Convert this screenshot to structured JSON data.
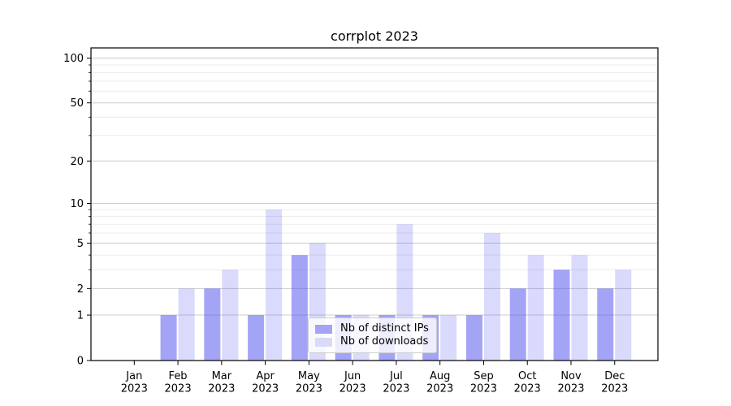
{
  "chart_data": {
    "type": "bar",
    "title": "corrplot 2023",
    "xlabel": "",
    "ylabel": "",
    "scale": "log1p",
    "grid": true,
    "legend_position": "lower center",
    "ylim": [
      0,
      117
    ],
    "y_major_ticks": [
      0,
      1,
      2,
      5,
      10,
      20,
      50,
      100
    ],
    "y_minor_gridlines": [
      3,
      4,
      6,
      7,
      8,
      9,
      30,
      40,
      60,
      70,
      80,
      90
    ],
    "categories": [
      "Jan 2023",
      "Feb 2023",
      "Mar 2023",
      "Apr 2023",
      "May 2023",
      "Jun 2023",
      "Jul 2023",
      "Aug 2023",
      "Sep 2023",
      "Oct 2023",
      "Nov 2023",
      "Dec 2023"
    ],
    "series": [
      {
        "name": "Nb of distinct IPs",
        "color": "rgba(80,80,240,0.52)",
        "swatch_color": "#a4a4f4",
        "values": [
          0,
          1,
          2,
          1,
          4,
          1,
          1,
          1,
          1,
          2,
          3,
          2
        ]
      },
      {
        "name": "Nb of downloads",
        "color": "rgba(80,80,240,0.21)",
        "swatch_color": "#dadaf9",
        "values": [
          0,
          2,
          3,
          9,
          5,
          1,
          7,
          1,
          6,
          4,
          4,
          3
        ]
      }
    ],
    "colors": {
      "major_grid": "#cccccc",
      "minor_grid": "#ebebeb",
      "spine": "#000000",
      "text": "#000000",
      "background": "#ffffff"
    }
  }
}
